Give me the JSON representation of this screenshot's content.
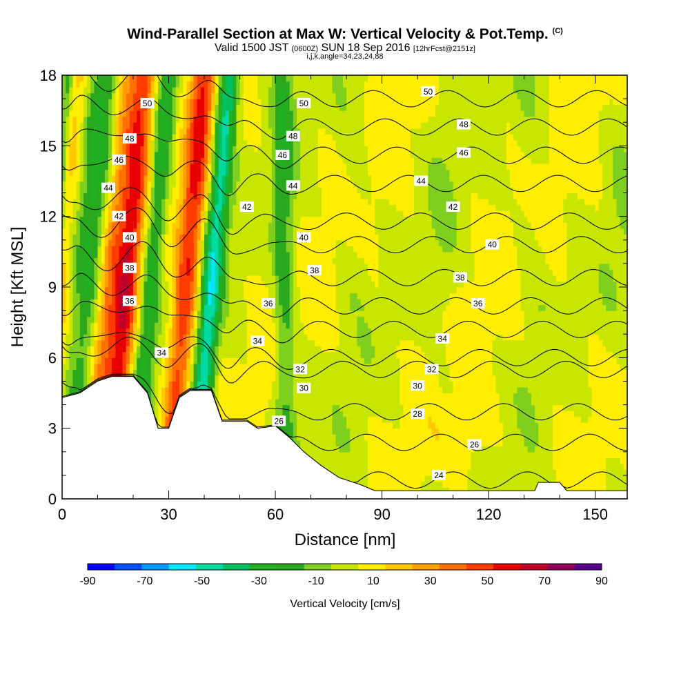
{
  "header": {
    "title_main": "Wind-Parallel Section at Max W: Vertical Velocity & Pot.Temp.",
    "title_sup": "(C)",
    "subtitle_a": "Valid 1500 JST",
    "subtitle_b": "(0600Z)",
    "subtitle_c": "SUN 18 Sep 2016",
    "subtitle_d": "[12hrFcst@2151z]",
    "subtitle2": "i,j,k,angle=34,23,24,88"
  },
  "chart_data": {
    "type": "heatmap",
    "xlabel": "Distance [nm]",
    "ylabel": "Height [Kft MSL]",
    "xlim": [
      0,
      159
    ],
    "ylim": [
      0,
      18
    ],
    "x_ticks": [
      "0",
      "30",
      "60",
      "90",
      "120",
      "150"
    ],
    "x_tick_values": [
      0,
      30,
      60,
      90,
      120,
      150
    ],
    "y_ticks": [
      "0",
      "3",
      "6",
      "9",
      "12",
      "15",
      "18"
    ],
    "y_tick_values": [
      0,
      3,
      6,
      9,
      12,
      15,
      18
    ],
    "colorbar": {
      "title": "Vertical Velocity [cm/s]",
      "labels": [
        "-90",
        "-70",
        "-50",
        "-30",
        "-10",
        "10",
        "30",
        "50",
        "70",
        "90"
      ],
      "bounds": [
        -90,
        -80,
        -70,
        -60,
        -50,
        -40,
        -30,
        -20,
        -10,
        0,
        10,
        20,
        30,
        40,
        50,
        60,
        70,
        80,
        90
      ],
      "colors": [
        "#0000ff",
        "#0050ff",
        "#0096ff",
        "#00e6ff",
        "#00d9a0",
        "#00c060",
        "#20b020",
        "#2aa81e",
        "#7fcf1e",
        "#c8e600",
        "#ffee00",
        "#ffc800",
        "#ff9f00",
        "#ff7000",
        "#ff3c00",
        "#e80000",
        "#c0002a",
        "#90005a",
        "#58008c"
      ]
    },
    "terrain_kft": [
      [
        0,
        4.3
      ],
      [
        5,
        4.5
      ],
      [
        10,
        5.0
      ],
      [
        14,
        5.2
      ],
      [
        20,
        5.2
      ],
      [
        24,
        4.5
      ],
      [
        27,
        3.0
      ],
      [
        30,
        3.0
      ],
      [
        33,
        4.3
      ],
      [
        36,
        4.6
      ],
      [
        42,
        4.6
      ],
      [
        45,
        3.3
      ],
      [
        52,
        3.3
      ],
      [
        55,
        3.0
      ],
      [
        60,
        3.1
      ],
      [
        64,
        2.6
      ],
      [
        68,
        2.0
      ],
      [
        73,
        1.4
      ],
      [
        78,
        0.9
      ],
      [
        84,
        0.6
      ],
      [
        88,
        0.35
      ],
      [
        100,
        0.35
      ],
      [
        120,
        0.35
      ],
      [
        133,
        0.35
      ],
      [
        134,
        0.7
      ],
      [
        140,
        0.7
      ],
      [
        142,
        0.35
      ],
      [
        159,
        0.35
      ]
    ],
    "isentropes_c": [
      "24",
      "26",
      "28",
      "30",
      "32",
      "34",
      "36",
      "38",
      "40",
      "42",
      "44",
      "46",
      "48",
      "50"
    ],
    "isentrope_height_kft_at_right": [
      0.8,
      2.4,
      3.7,
      5.5,
      6.0,
      7.2,
      8.2,
      9.4,
      10.8,
      11.8,
      13.4,
      14.6,
      15.8,
      17.0
    ],
    "contour_labels": [
      {
        "text": "24",
        "x": 106,
        "y": 1.0
      },
      {
        "text": "26",
        "x": 116,
        "y": 2.3
      },
      {
        "text": "26",
        "x": 61,
        "y": 3.3
      },
      {
        "text": "28",
        "x": 100,
        "y": 3.6
      },
      {
        "text": "30",
        "x": 68,
        "y": 4.7
      },
      {
        "text": "30",
        "x": 100,
        "y": 4.8
      },
      {
        "text": "32",
        "x": 67,
        "y": 5.5
      },
      {
        "text": "32",
        "x": 104,
        "y": 5.5
      },
      {
        "text": "34",
        "x": 28,
        "y": 6.2
      },
      {
        "text": "34",
        "x": 55,
        "y": 6.7
      },
      {
        "text": "34",
        "x": 107,
        "y": 6.8
      },
      {
        "text": "36",
        "x": 19,
        "y": 8.4
      },
      {
        "text": "36",
        "x": 58,
        "y": 8.3
      },
      {
        "text": "36",
        "x": 117,
        "y": 8.3
      },
      {
        "text": "38",
        "x": 19,
        "y": 9.8
      },
      {
        "text": "38",
        "x": 71,
        "y": 9.7
      },
      {
        "text": "38",
        "x": 112,
        "y": 9.4
      },
      {
        "text": "40",
        "x": 19,
        "y": 11.1
      },
      {
        "text": "40",
        "x": 68,
        "y": 11.1
      },
      {
        "text": "40",
        "x": 121,
        "y": 10.8
      },
      {
        "text": "42",
        "x": 16,
        "y": 12.0
      },
      {
        "text": "42",
        "x": 52,
        "y": 12.4
      },
      {
        "text": "42",
        "x": 110,
        "y": 12.4
      },
      {
        "text": "44",
        "x": 13,
        "y": 13.2
      },
      {
        "text": "44",
        "x": 65,
        "y": 13.3
      },
      {
        "text": "44",
        "x": 101,
        "y": 13.5
      },
      {
        "text": "46",
        "x": 16,
        "y": 14.4
      },
      {
        "text": "46",
        "x": 62,
        "y": 14.6
      },
      {
        "text": "46",
        "x": 113,
        "y": 14.7
      },
      {
        "text": "48",
        "x": 19,
        "y": 15.3
      },
      {
        "text": "48",
        "x": 65,
        "y": 15.4
      },
      {
        "text": "48",
        "x": 113,
        "y": 15.9
      },
      {
        "text": "50",
        "x": 24,
        "y": 16.8
      },
      {
        "text": "50",
        "x": 68,
        "y": 16.8
      },
      {
        "text": "50",
        "x": 103,
        "y": 17.3
      }
    ],
    "w_bands": [
      {
        "x": 1.5,
        "w": -25,
        "halfwidth": 1.8
      },
      {
        "x": 5,
        "w": 15,
        "halfwidth": 2.5
      },
      {
        "x": 12,
        "w": -30,
        "halfwidth": 4
      },
      {
        "x": 18,
        "w": 25,
        "halfwidth": 3
      },
      {
        "x": 23,
        "w": 55,
        "halfwidth": 3.5
      },
      {
        "x": 30,
        "w": -35,
        "halfwidth": 3
      },
      {
        "x": 40,
        "w": 50,
        "halfwidth": 3.5
      },
      {
        "x": 47,
        "w": -55,
        "halfwidth": 3
      },
      {
        "x": 62,
        "w": -25,
        "halfwidth": 3
      }
    ]
  }
}
